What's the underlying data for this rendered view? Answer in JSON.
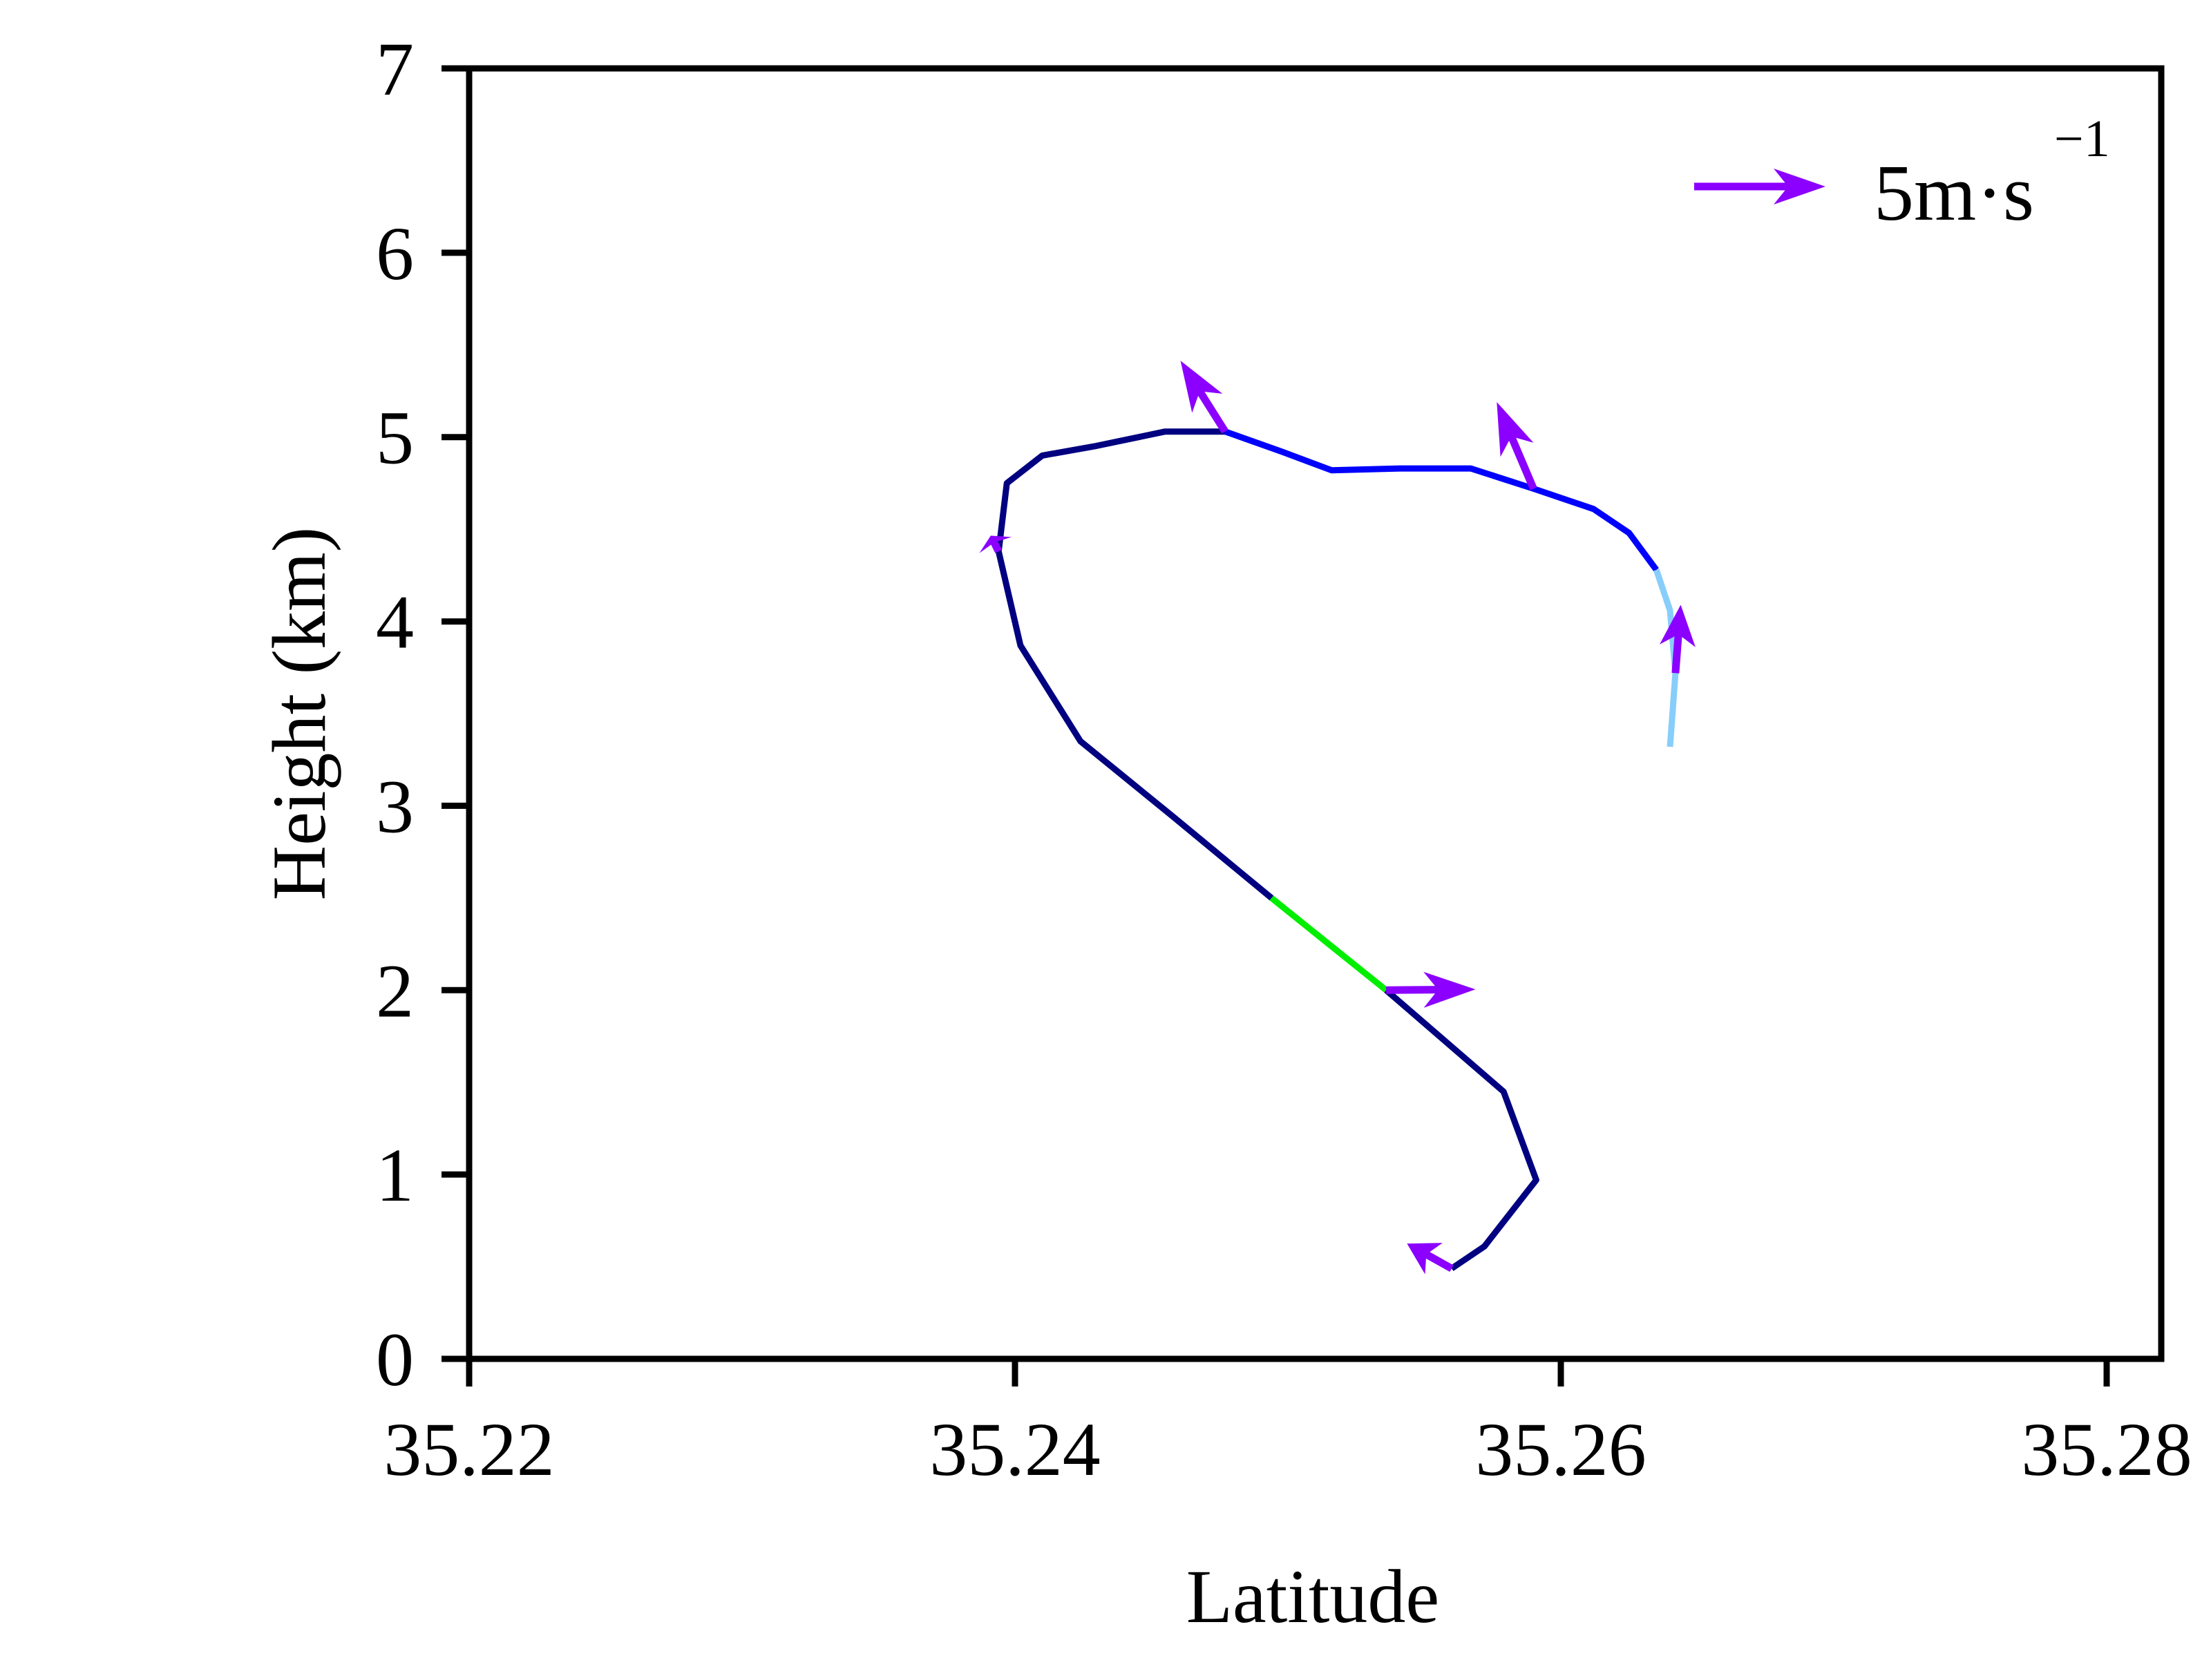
{
  "chart_data": {
    "type": "line",
    "title": "",
    "xlabel": "Latitude",
    "ylabel": "Height (km)",
    "xlim": [
      35.22,
      35.282
    ],
    "ylim": [
      0,
      7
    ],
    "xticks": [
      "35.22",
      "35.24",
      "35.26",
      "35.28"
    ],
    "xtick_values": [
      35.22,
      35.24,
      35.26,
      35.28
    ],
    "yticks": [
      "0",
      "1",
      "2",
      "3",
      "4",
      "5",
      "6",
      "7"
    ],
    "ytick_values": [
      0,
      1,
      2,
      3,
      4,
      5,
      6,
      7
    ],
    "grid": false,
    "series": [
      {
        "color": "#000080",
        "points": [
          [
            35.256,
            0.49
          ],
          [
            35.2572,
            0.61
          ],
          [
            35.2591,
            0.97
          ],
          [
            35.2579,
            1.45
          ],
          [
            35.2536,
            2.0
          ]
        ]
      },
      {
        "color": "#00ee00",
        "points": [
          [
            35.2536,
            2.0
          ],
          [
            35.2494,
            2.5
          ]
        ]
      },
      {
        "color": "#000080",
        "points": [
          [
            35.2494,
            2.5
          ],
          [
            35.2458,
            2.94
          ],
          [
            35.2424,
            3.35
          ],
          [
            35.2402,
            3.87
          ],
          [
            35.2394,
            4.38
          ],
          [
            35.2397,
            4.75
          ],
          [
            35.241,
            4.9
          ],
          [
            35.2429,
            4.95
          ],
          [
            35.2455,
            5.03
          ],
          [
            35.2477,
            5.03
          ]
        ]
      },
      {
        "color": "#0000ff",
        "points": [
          [
            35.2477,
            5.03
          ],
          [
            35.2498,
            4.92
          ],
          [
            35.2516,
            4.82
          ],
          [
            35.2541,
            4.83
          ],
          [
            35.2567,
            4.83
          ],
          [
            35.259,
            4.72
          ],
          [
            35.2612,
            4.61
          ],
          [
            35.2625,
            4.48
          ],
          [
            35.2635,
            4.28
          ]
        ]
      },
      {
        "color": "#87cefa",
        "points": [
          [
            35.2635,
            4.28
          ],
          [
            35.264,
            4.06
          ],
          [
            35.2642,
            3.72
          ],
          [
            35.264,
            3.32
          ]
        ]
      }
    ],
    "wind_vectors": {
      "color": "#8b00ff",
      "items": [
        {
          "lat": 35.256,
          "height": 0.49,
          "u": -1.7,
          "v": 0.95
        },
        {
          "lat": 35.2536,
          "height": 2.0,
          "u": 3.4,
          "v": 0.03
        },
        {
          "lat": 35.2394,
          "height": 4.38,
          "u": -0.3,
          "v": 0.6
        },
        {
          "lat": 35.2477,
          "height": 5.03,
          "u": -1.7,
          "v": 2.7
        },
        {
          "lat": 35.259,
          "height": 4.72,
          "u": -1.4,
          "v": 3.3
        },
        {
          "lat": 35.2642,
          "height": 3.72,
          "u": 0.2,
          "v": 2.6
        }
      ]
    },
    "legend": {
      "position": "top-right",
      "reference_vector": 5,
      "label": "5m·s",
      "superscript": "−1"
    }
  }
}
